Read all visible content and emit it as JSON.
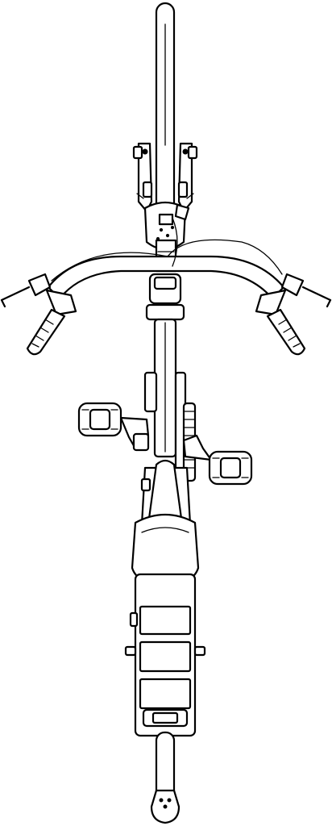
{
  "drawing": {
    "stroke_color": "#000000",
    "fill_color": "#ffffff",
    "background": "#ffffff",
    "icon": "e-bike-top-view-line-drawing"
  }
}
